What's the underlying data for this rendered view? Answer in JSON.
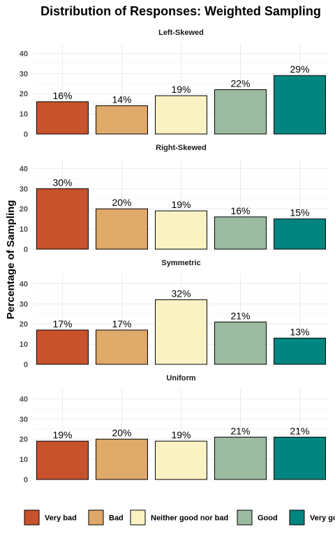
{
  "chart_data": {
    "type": "bar",
    "title": "Distribution of Responses: Weighted Sampling",
    "ylabel": "Percentage of Sampling",
    "xlabel": "",
    "ylim": [
      0,
      45
    ],
    "yticks": [
      0,
      10,
      20,
      30,
      40
    ],
    "grid": true,
    "legend_position": "bottom",
    "categories": [
      "Very bad",
      "Bad",
      "Neither good nor bad",
      "Good",
      "Very good"
    ],
    "legend_labels": [
      "Very bad",
      "Bad",
      "Neither good nor bad",
      "Good",
      "Very goo"
    ],
    "colors": [
      "#c8522b",
      "#dfa96a",
      "#fbf2c4",
      "#9cbba0",
      "#008580"
    ],
    "panels": [
      {
        "name": "Left-Skewed",
        "values": [
          16,
          14,
          19,
          22,
          29
        ],
        "labels": [
          "16%",
          "14%",
          "19%",
          "22%",
          "29%"
        ]
      },
      {
        "name": "Right-Skewed",
        "values": [
          30,
          20,
          19,
          16,
          15
        ],
        "labels": [
          "30%",
          "20%",
          "19%",
          "16%",
          "15%"
        ]
      },
      {
        "name": "Symmetric",
        "values": [
          17,
          17,
          32,
          21,
          13
        ],
        "labels": [
          "17%",
          "17%",
          "32%",
          "21%",
          "13%"
        ]
      },
      {
        "name": "Uniform",
        "values": [
          19,
          20,
          19,
          21,
          21
        ],
        "labels": [
          "19%",
          "20%",
          "19%",
          "21%",
          "21%"
        ]
      }
    ]
  }
}
